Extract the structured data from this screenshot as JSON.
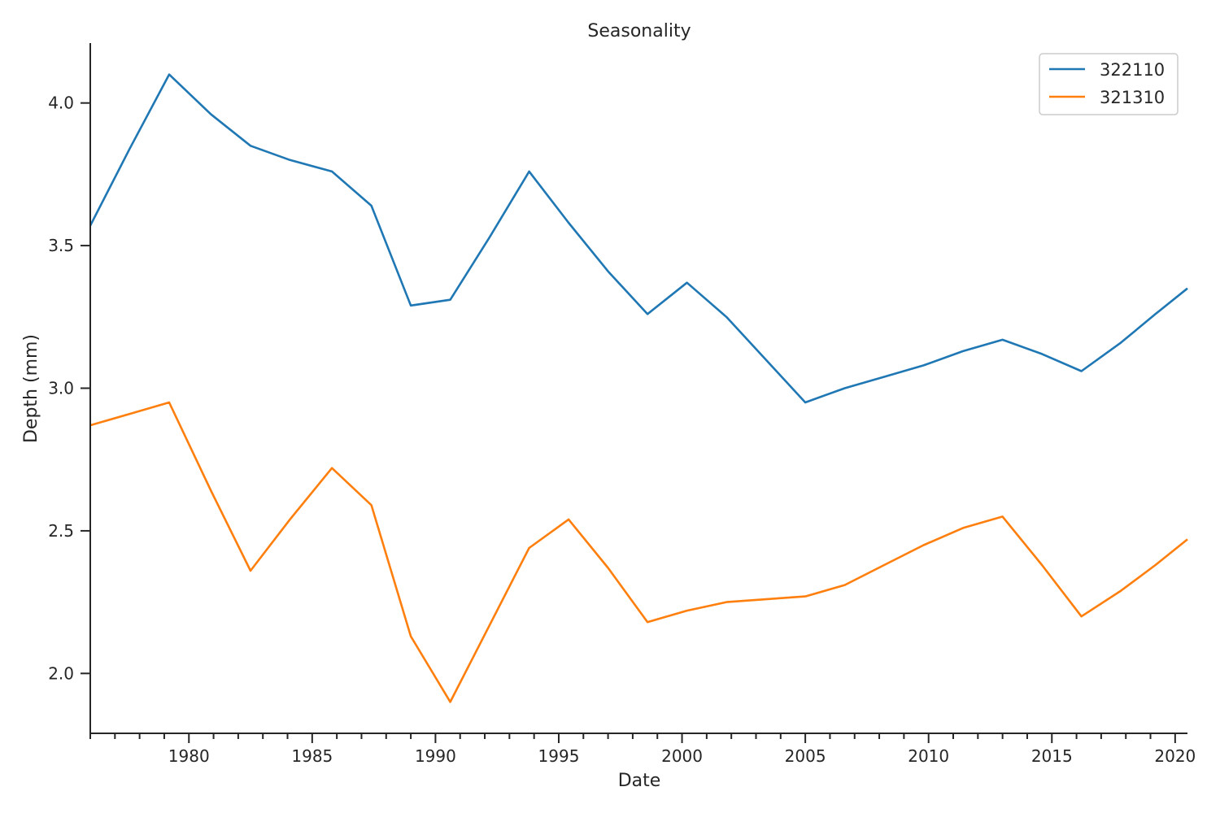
{
  "chart_data": {
    "type": "line",
    "title": "Seasonality",
    "xlabel": "Date",
    "ylabel": "Depth (mm)",
    "xlim": [
      1976.0,
      2020.5
    ],
    "ylim": [
      1.79,
      4.21
    ],
    "x_ticks": [
      1980,
      1985,
      1990,
      1995,
      2000,
      2005,
      2010,
      2015,
      2020
    ],
    "y_ticks": [
      2.0,
      2.5,
      3.0,
      3.5,
      4.0
    ],
    "x_tick_labels": [
      "1980",
      "1985",
      "1990",
      "1995",
      "2000",
      "2005",
      "2010",
      "2015",
      "2020"
    ],
    "y_tick_labels": [
      "2.0",
      "2.5",
      "3.0",
      "3.5",
      "4.0"
    ],
    "grid": false,
    "legend_position": "top-right",
    "series": [
      {
        "name": "322110",
        "color": "#1f77b4",
        "points": [
          [
            1976.0,
            3.57
          ],
          [
            1977.6,
            3.84
          ],
          [
            1979.2,
            4.1
          ],
          [
            1980.9,
            3.96
          ],
          [
            1982.5,
            3.85
          ],
          [
            1984.1,
            3.8
          ],
          [
            1985.8,
            3.76
          ],
          [
            1987.4,
            3.64
          ],
          [
            1989.0,
            3.29
          ],
          [
            1990.6,
            3.31
          ],
          [
            1992.2,
            3.53
          ],
          [
            1993.8,
            3.76
          ],
          [
            1995.4,
            3.58
          ],
          [
            1997.0,
            3.41
          ],
          [
            1998.6,
            3.26
          ],
          [
            2000.2,
            3.37
          ],
          [
            2001.8,
            3.25
          ],
          [
            2003.4,
            3.1
          ],
          [
            2005.0,
            2.95
          ],
          [
            2006.6,
            3.0
          ],
          [
            2008.2,
            3.04
          ],
          [
            2009.8,
            3.08
          ],
          [
            2011.4,
            3.13
          ],
          [
            2013.0,
            3.17
          ],
          [
            2014.6,
            3.12
          ],
          [
            2016.2,
            3.06
          ],
          [
            2017.8,
            3.16
          ],
          [
            2019.2,
            3.26
          ],
          [
            2020.5,
            3.35
          ]
        ]
      },
      {
        "name": "321310",
        "color": "#ff7f0e",
        "points": [
          [
            1976.0,
            2.87
          ],
          [
            1977.6,
            2.91
          ],
          [
            1979.2,
            2.95
          ],
          [
            1980.9,
            2.64
          ],
          [
            1982.5,
            2.36
          ],
          [
            1984.1,
            2.54
          ],
          [
            1985.8,
            2.72
          ],
          [
            1987.4,
            2.59
          ],
          [
            1989.0,
            2.13
          ],
          [
            1990.6,
            1.9
          ],
          [
            1992.2,
            2.17
          ],
          [
            1993.8,
            2.44
          ],
          [
            1995.4,
            2.54
          ],
          [
            1997.0,
            2.37
          ],
          [
            1998.6,
            2.18
          ],
          [
            2000.2,
            2.22
          ],
          [
            2001.8,
            2.25
          ],
          [
            2003.4,
            2.26
          ],
          [
            2005.0,
            2.27
          ],
          [
            2006.6,
            2.31
          ],
          [
            2008.2,
            2.38
          ],
          [
            2009.8,
            2.45
          ],
          [
            2011.4,
            2.51
          ],
          [
            2013.0,
            2.55
          ],
          [
            2014.6,
            2.38
          ],
          [
            2016.2,
            2.2
          ],
          [
            2017.8,
            2.29
          ],
          [
            2019.2,
            2.38
          ],
          [
            2020.5,
            2.47
          ]
        ]
      }
    ]
  }
}
